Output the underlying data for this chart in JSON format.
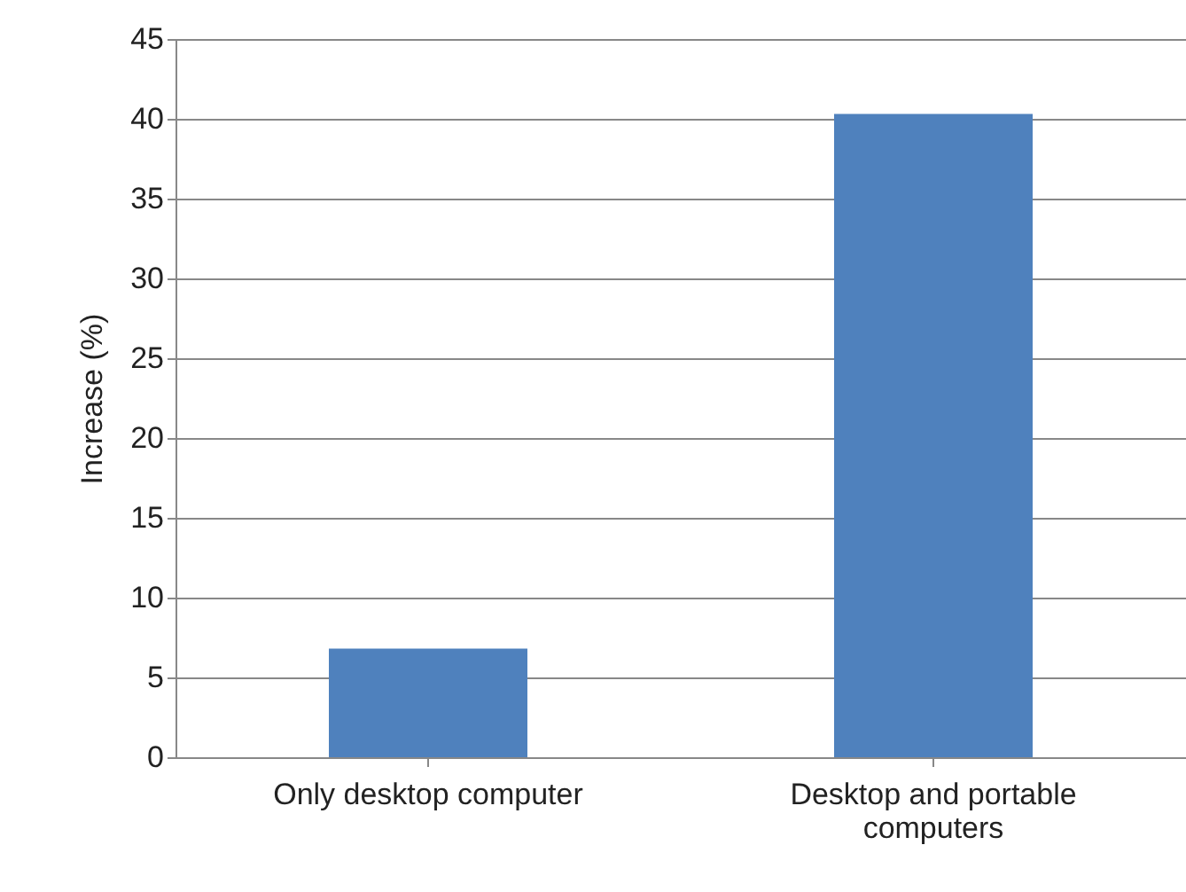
{
  "chart_data": {
    "type": "bar",
    "categories": [
      "Only desktop computer",
      "Desktop and portable computers"
    ],
    "values": [
      6.8,
      40.3
    ],
    "color": "#4f81bd",
    "ylabel": "Increase (%)",
    "ylim": [
      0,
      45
    ],
    "yticks": [
      0,
      5,
      10,
      15,
      20,
      25,
      30,
      35,
      40,
      45
    ],
    "grid": "y"
  }
}
